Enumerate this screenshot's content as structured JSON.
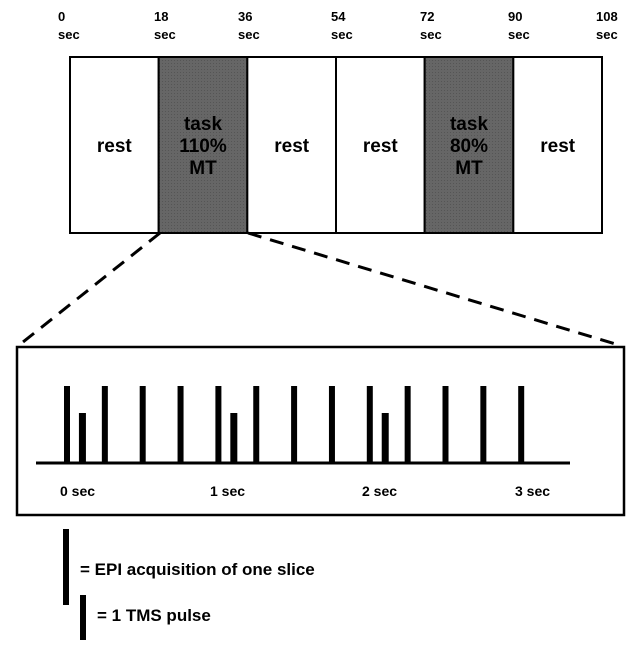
{
  "time_axis": {
    "ticks": [
      {
        "value": "0",
        "unit": "sec"
      },
      {
        "value": "18",
        "unit": "sec"
      },
      {
        "value": "36",
        "unit": "sec"
      },
      {
        "value": "54",
        "unit": "sec"
      },
      {
        "value": "72",
        "unit": "sec"
      },
      {
        "value": "90",
        "unit": "sec"
      },
      {
        "value": "108",
        "unit": "sec"
      }
    ]
  },
  "blocks": [
    {
      "type": "rest",
      "lines": [
        "rest"
      ]
    },
    {
      "type": "task",
      "lines": [
        "task",
        "110%",
        "MT"
      ]
    },
    {
      "type": "rest",
      "lines": [
        "rest"
      ]
    },
    {
      "type": "rest",
      "lines": [
        "rest"
      ]
    },
    {
      "type": "task",
      "lines": [
        "task",
        "80%",
        "MT"
      ]
    },
    {
      "type": "rest",
      "lines": [
        "rest"
      ]
    }
  ],
  "colors": {
    "task_fill": "#666666",
    "rest_fill": "#ffffff",
    "ink": "#000000"
  },
  "zoom": {
    "epi_slices_per_sec": 4,
    "epi_slices": [
      0,
      0.25,
      0.5,
      0.75,
      1.0,
      1.25,
      1.5,
      1.75,
      2.0,
      2.25,
      2.5,
      2.75,
      3.0
    ],
    "tms_pulses": [
      0.125,
      1.125,
      2.125
    ],
    "axis_labels": [
      "0 sec",
      "1 sec",
      "2 sec",
      "3 sec"
    ]
  },
  "legend": {
    "epi_label": "= EPI acquisition of one slice",
    "tms_label": "= 1 TMS pulse"
  }
}
